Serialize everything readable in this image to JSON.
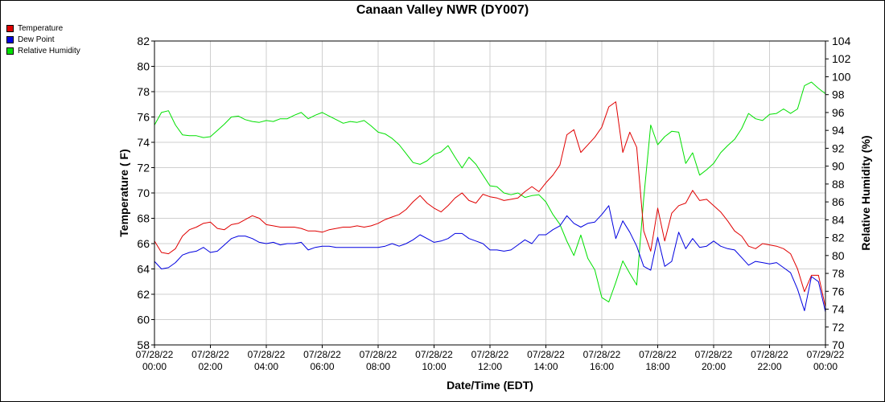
{
  "chart_data": {
    "type": "line",
    "title": "Canaan Valley NWR (DY007)",
    "xlabel": "Date/Time (EDT)",
    "ylabel_left": "Temperature ( F)",
    "ylabel_right": "Relative Humidity (%)",
    "ylim_left": [
      58,
      82
    ],
    "ylim_right": [
      70,
      104
    ],
    "xlim_hours": [
      0,
      24
    ],
    "grid": true,
    "legend_placement": "top-left",
    "x_tick_labels": [
      [
        "07/28/22",
        "00:00"
      ],
      [
        "07/28/22",
        "02:00"
      ],
      [
        "07/28/22",
        "04:00"
      ],
      [
        "07/28/22",
        "06:00"
      ],
      [
        "07/28/22",
        "08:00"
      ],
      [
        "07/28/22",
        "10:00"
      ],
      [
        "07/28/22",
        "12:00"
      ],
      [
        "07/28/22",
        "14:00"
      ],
      [
        "07/28/22",
        "16:00"
      ],
      [
        "07/28/22",
        "18:00"
      ],
      [
        "07/28/22",
        "20:00"
      ],
      [
        "07/28/22",
        "22:00"
      ],
      [
        "07/29/22",
        "00:00"
      ]
    ],
    "series": [
      {
        "name": "Temperature",
        "color": "#e00000",
        "axis": "left",
        "points": [
          [
            0,
            66.2
          ],
          [
            0.25,
            65.3
          ],
          [
            0.5,
            65.2
          ],
          [
            0.75,
            65.6
          ],
          [
            1,
            66.6
          ],
          [
            1.25,
            67.1
          ],
          [
            1.5,
            67.3
          ],
          [
            1.75,
            67.6
          ],
          [
            2,
            67.7
          ],
          [
            2.25,
            67.2
          ],
          [
            2.5,
            67.1
          ],
          [
            2.75,
            67.5
          ],
          [
            3,
            67.6
          ],
          [
            3.25,
            67.9
          ],
          [
            3.5,
            68.2
          ],
          [
            3.75,
            68.0
          ],
          [
            4,
            67.5
          ],
          [
            4.25,
            67.4
          ],
          [
            4.5,
            67.3
          ],
          [
            4.75,
            67.3
          ],
          [
            5,
            67.3
          ],
          [
            5.25,
            67.2
          ],
          [
            5.5,
            67.0
          ],
          [
            5.75,
            67.0
          ],
          [
            6,
            66.9
          ],
          [
            6.25,
            67.1
          ],
          [
            6.5,
            67.2
          ],
          [
            6.75,
            67.3
          ],
          [
            7,
            67.3
          ],
          [
            7.25,
            67.4
          ],
          [
            7.5,
            67.3
          ],
          [
            7.75,
            67.4
          ],
          [
            8,
            67.6
          ],
          [
            8.25,
            67.9
          ],
          [
            8.5,
            68.1
          ],
          [
            8.75,
            68.3
          ],
          [
            9,
            68.7
          ],
          [
            9.25,
            69.3
          ],
          [
            9.5,
            69.8
          ],
          [
            9.75,
            69.2
          ],
          [
            10,
            68.8
          ],
          [
            10.25,
            68.5
          ],
          [
            10.5,
            69.0
          ],
          [
            10.75,
            69.6
          ],
          [
            11,
            70.0
          ],
          [
            11.25,
            69.4
          ],
          [
            11.5,
            69.2
          ],
          [
            11.75,
            69.9
          ],
          [
            12,
            69.7
          ],
          [
            12.25,
            69.6
          ],
          [
            12.5,
            69.4
          ],
          [
            12.75,
            69.5
          ],
          [
            13,
            69.6
          ],
          [
            13.25,
            70.1
          ],
          [
            13.5,
            70.5
          ],
          [
            13.75,
            70.1
          ],
          [
            14,
            70.8
          ],
          [
            14.25,
            71.4
          ],
          [
            14.5,
            72.2
          ],
          [
            14.75,
            74.6
          ],
          [
            15,
            75.0
          ],
          [
            15.25,
            73.2
          ],
          [
            15.5,
            73.8
          ],
          [
            15.75,
            74.4
          ],
          [
            16,
            75.2
          ],
          [
            16.25,
            76.8
          ],
          [
            16.5,
            77.2
          ],
          [
            16.75,
            73.2
          ],
          [
            17,
            74.8
          ],
          [
            17.25,
            73.6
          ],
          [
            17.5,
            67.0
          ],
          [
            17.75,
            65.4
          ],
          [
            18,
            68.8
          ],
          [
            18.25,
            66.2
          ],
          [
            18.5,
            68.4
          ],
          [
            18.75,
            69.0
          ],
          [
            19,
            69.2
          ],
          [
            19.25,
            70.2
          ],
          [
            19.5,
            69.4
          ],
          [
            19.75,
            69.5
          ],
          [
            20,
            69.0
          ],
          [
            20.25,
            68.5
          ],
          [
            20.5,
            67.8
          ],
          [
            20.75,
            67.0
          ],
          [
            21,
            66.6
          ],
          [
            21.25,
            65.8
          ],
          [
            21.5,
            65.6
          ],
          [
            21.75,
            66.0
          ],
          [
            22,
            65.9
          ],
          [
            22.25,
            65.8
          ],
          [
            22.5,
            65.6
          ],
          [
            22.75,
            65.2
          ],
          [
            23,
            64.0
          ],
          [
            23.25,
            62.2
          ],
          [
            23.5,
            63.5
          ],
          [
            23.75,
            63.5
          ],
          [
            24,
            61.0
          ]
        ]
      },
      {
        "name": "Dew Point",
        "color": "#0000e0",
        "axis": "left",
        "points": [
          [
            0,
            64.6
          ],
          [
            0.25,
            64.0
          ],
          [
            0.5,
            64.1
          ],
          [
            0.75,
            64.5
          ],
          [
            1,
            65.1
          ],
          [
            1.25,
            65.3
          ],
          [
            1.5,
            65.4
          ],
          [
            1.75,
            65.7
          ],
          [
            2,
            65.3
          ],
          [
            2.25,
            65.4
          ],
          [
            2.5,
            65.9
          ],
          [
            2.75,
            66.4
          ],
          [
            3,
            66.6
          ],
          [
            3.25,
            66.6
          ],
          [
            3.5,
            66.4
          ],
          [
            3.75,
            66.1
          ],
          [
            4,
            66.0
          ],
          [
            4.25,
            66.1
          ],
          [
            4.5,
            65.9
          ],
          [
            4.75,
            66.0
          ],
          [
            5,
            66.0
          ],
          [
            5.25,
            66.1
          ],
          [
            5.5,
            65.5
          ],
          [
            5.75,
            65.7
          ],
          [
            6,
            65.8
          ],
          [
            6.25,
            65.8
          ],
          [
            6.5,
            65.7
          ],
          [
            6.75,
            65.7
          ],
          [
            7,
            65.7
          ],
          [
            7.25,
            65.7
          ],
          [
            7.5,
            65.7
          ],
          [
            7.75,
            65.7
          ],
          [
            8,
            65.7
          ],
          [
            8.25,
            65.8
          ],
          [
            8.5,
            66.0
          ],
          [
            8.75,
            65.8
          ],
          [
            9,
            66.0
          ],
          [
            9.25,
            66.3
          ],
          [
            9.5,
            66.7
          ],
          [
            9.75,
            66.4
          ],
          [
            10,
            66.1
          ],
          [
            10.25,
            66.2
          ],
          [
            10.5,
            66.4
          ],
          [
            10.75,
            66.8
          ],
          [
            11,
            66.8
          ],
          [
            11.25,
            66.4
          ],
          [
            11.5,
            66.2
          ],
          [
            11.75,
            66.0
          ],
          [
            12,
            65.5
          ],
          [
            12.25,
            65.5
          ],
          [
            12.5,
            65.4
          ],
          [
            12.75,
            65.5
          ],
          [
            13,
            65.9
          ],
          [
            13.25,
            66.3
          ],
          [
            13.5,
            66.0
          ],
          [
            13.75,
            66.7
          ],
          [
            14,
            66.7
          ],
          [
            14.25,
            67.1
          ],
          [
            14.5,
            67.4
          ],
          [
            14.75,
            68.2
          ],
          [
            15,
            67.6
          ],
          [
            15.25,
            67.3
          ],
          [
            15.5,
            67.6
          ],
          [
            15.75,
            67.7
          ],
          [
            16,
            68.3
          ],
          [
            16.25,
            69.0
          ],
          [
            16.5,
            66.4
          ],
          [
            16.75,
            67.8
          ],
          [
            17,
            66.9
          ],
          [
            17.25,
            65.8
          ],
          [
            17.5,
            64.2
          ],
          [
            17.75,
            63.9
          ],
          [
            18,
            66.5
          ],
          [
            18.25,
            64.2
          ],
          [
            18.5,
            64.6
          ],
          [
            18.75,
            66.9
          ],
          [
            19,
            65.6
          ],
          [
            19.25,
            66.4
          ],
          [
            19.5,
            65.7
          ],
          [
            19.75,
            65.8
          ],
          [
            20,
            66.2
          ],
          [
            20.25,
            65.8
          ],
          [
            20.5,
            65.6
          ],
          [
            20.75,
            65.5
          ],
          [
            21,
            64.9
          ],
          [
            21.25,
            64.3
          ],
          [
            21.5,
            64.6
          ],
          [
            21.75,
            64.5
          ],
          [
            22,
            64.4
          ],
          [
            22.25,
            64.5
          ],
          [
            22.5,
            64.1
          ],
          [
            22.75,
            63.7
          ],
          [
            23,
            62.4
          ],
          [
            23.25,
            60.7
          ],
          [
            23.5,
            63.4
          ],
          [
            23.75,
            63.0
          ],
          [
            24,
            60.6
          ]
        ]
      },
      {
        "name": "Relative Humidity",
        "color": "#00e000",
        "axis": "right",
        "points": [
          [
            0,
            94.6
          ],
          [
            0.25,
            96.0
          ],
          [
            0.5,
            96.2
          ],
          [
            0.75,
            94.6
          ],
          [
            1,
            93.5
          ],
          [
            1.25,
            93.4
          ],
          [
            1.5,
            93.4
          ],
          [
            1.75,
            93.2
          ],
          [
            2,
            93.3
          ],
          [
            2.25,
            94.0
          ],
          [
            2.5,
            94.7
          ],
          [
            2.75,
            95.5
          ],
          [
            3,
            95.6
          ],
          [
            3.25,
            95.2
          ],
          [
            3.5,
            95.0
          ],
          [
            3.75,
            94.9
          ],
          [
            4,
            95.1
          ],
          [
            4.25,
            95.0
          ],
          [
            4.5,
            95.3
          ],
          [
            4.75,
            95.3
          ],
          [
            5,
            95.7
          ],
          [
            5.25,
            96.0
          ],
          [
            5.5,
            95.3
          ],
          [
            5.75,
            95.7
          ],
          [
            6,
            96.0
          ],
          [
            6.25,
            95.6
          ],
          [
            6.5,
            95.2
          ],
          [
            6.75,
            94.8
          ],
          [
            7,
            95.0
          ],
          [
            7.25,
            94.9
          ],
          [
            7.5,
            95.1
          ],
          [
            7.75,
            94.5
          ],
          [
            8,
            93.8
          ],
          [
            8.25,
            93.6
          ],
          [
            8.5,
            93.1
          ],
          [
            8.75,
            92.4
          ],
          [
            9,
            91.4
          ],
          [
            9.25,
            90.4
          ],
          [
            9.5,
            90.2
          ],
          [
            9.75,
            90.6
          ],
          [
            10,
            91.3
          ],
          [
            10.25,
            91.6
          ],
          [
            10.5,
            92.3
          ],
          [
            10.75,
            91.0
          ],
          [
            11,
            89.8
          ],
          [
            11.25,
            91.0
          ],
          [
            11.5,
            90.2
          ],
          [
            11.75,
            89.0
          ],
          [
            12,
            87.8
          ],
          [
            12.25,
            87.7
          ],
          [
            12.5,
            87.0
          ],
          [
            12.75,
            86.8
          ],
          [
            13,
            87.0
          ],
          [
            13.25,
            86.5
          ],
          [
            13.5,
            86.7
          ],
          [
            13.75,
            86.8
          ],
          [
            14,
            86.0
          ],
          [
            14.25,
            84.6
          ],
          [
            14.5,
            83.5
          ],
          [
            14.75,
            81.6
          ],
          [
            15,
            80.0
          ],
          [
            15.25,
            82.3
          ],
          [
            15.5,
            79.7
          ],
          [
            15.75,
            78.4
          ],
          [
            16,
            75.3
          ],
          [
            16.25,
            74.8
          ],
          [
            16.5,
            77.0
          ],
          [
            16.75,
            79.4
          ],
          [
            17,
            78.0
          ],
          [
            17.25,
            76.7
          ],
          [
            17.5,
            86.4
          ],
          [
            17.75,
            94.6
          ],
          [
            18,
            92.4
          ],
          [
            18.25,
            93.3
          ],
          [
            18.5,
            93.9
          ],
          [
            18.75,
            93.8
          ],
          [
            19,
            90.3
          ],
          [
            19.25,
            91.5
          ],
          [
            19.5,
            89.0
          ],
          [
            19.75,
            89.6
          ],
          [
            20,
            90.3
          ],
          [
            20.25,
            91.5
          ],
          [
            20.5,
            92.3
          ],
          [
            20.75,
            93.0
          ],
          [
            21,
            94.2
          ],
          [
            21.25,
            95.9
          ],
          [
            21.5,
            95.3
          ],
          [
            21.75,
            95.1
          ],
          [
            22,
            95.8
          ],
          [
            22.25,
            95.9
          ],
          [
            22.5,
            96.4
          ],
          [
            22.75,
            95.9
          ],
          [
            23,
            96.4
          ],
          [
            23.25,
            99.0
          ],
          [
            23.5,
            99.4
          ],
          [
            23.75,
            98.7
          ],
          [
            24,
            98.1
          ]
        ]
      }
    ]
  }
}
